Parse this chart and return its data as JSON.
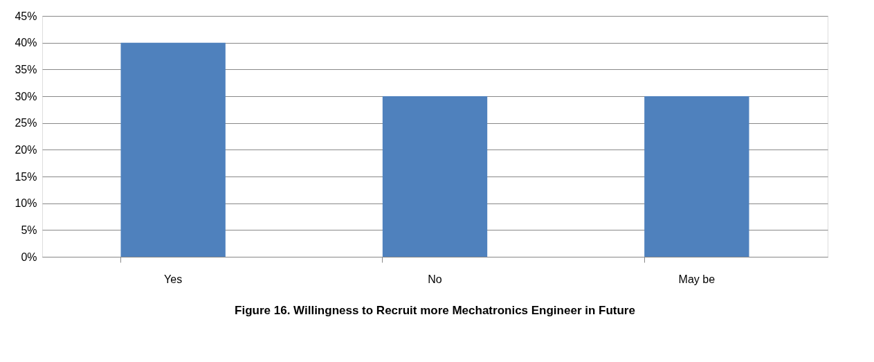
{
  "chart_data": {
    "type": "bar",
    "title": "Figure 16. Willingness to Recruit more Mechatronics Engineer in Future",
    "categories": [
      "Yes",
      "No",
      "May be"
    ],
    "values": [
      40,
      30,
      30
    ],
    "color": "#4f81bd",
    "ylim": [
      0,
      45
    ],
    "yticks": [
      {
        "value": 0,
        "label": "0%"
      },
      {
        "value": 5,
        "label": "5%"
      },
      {
        "value": 10,
        "label": "10%"
      },
      {
        "value": 15,
        "label": "15%"
      },
      {
        "value": 20,
        "label": "20%"
      },
      {
        "value": 25,
        "label": "25%"
      },
      {
        "value": 30,
        "label": "30%"
      },
      {
        "value": 35,
        "label": "35%"
      },
      {
        "value": 40,
        "label": "40%"
      },
      {
        "value": 45,
        "label": "45%"
      }
    ],
    "grid": "y"
  }
}
